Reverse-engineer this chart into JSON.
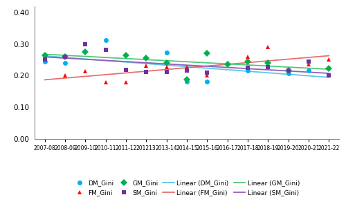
{
  "seasons": [
    "2007-08",
    "2008-09",
    "2009-10",
    "2010-11",
    "2011-12",
    "201213",
    "2013-14",
    "2014-15",
    "2015-16",
    "2016-17",
    "2017-18",
    "2018-19",
    "2019-20",
    "2020-21",
    "2021-22"
  ],
  "DM_Gini": [
    0.245,
    0.24,
    null,
    0.312,
    null,
    null,
    0.272,
    0.181,
    0.182,
    null,
    0.215,
    null,
    0.207,
    0.215,
    null
  ],
  "FM_Gini": [
    null,
    0.2,
    0.214,
    0.178,
    0.178,
    0.232,
    0.228,
    0.228,
    0.2,
    0.24,
    0.26,
    0.29,
    null,
    0.235,
    0.25
  ],
  "GM_Gini": [
    0.265,
    0.26,
    0.275,
    null,
    0.265,
    0.255,
    0.24,
    0.187,
    0.27,
    0.235,
    0.245,
    0.24,
    0.217,
    null,
    0.222
  ],
  "SM_Gini": [
    0.25,
    0.26,
    0.3,
    0.282,
    0.218,
    0.212,
    0.212,
    0.215,
    0.21,
    null,
    0.225,
    0.227,
    0.215,
    0.245,
    0.2
  ],
  "dm_color": "#00B0F0",
  "fm_color": "#FF0000",
  "gm_color": "#00B050",
  "sm_color": "#7030A0",
  "dm_line_color": "#5BC8E8",
  "fm_line_color": "#E87070",
  "gm_line_color": "#50C878",
  "sm_line_color": "#9060B8",
  "ylim": [
    0.0,
    0.42
  ],
  "yticks": [
    0.0,
    0.1,
    0.2,
    0.3,
    0.4
  ],
  "figsize": [
    5.0,
    2.95
  ],
  "dpi": 100
}
